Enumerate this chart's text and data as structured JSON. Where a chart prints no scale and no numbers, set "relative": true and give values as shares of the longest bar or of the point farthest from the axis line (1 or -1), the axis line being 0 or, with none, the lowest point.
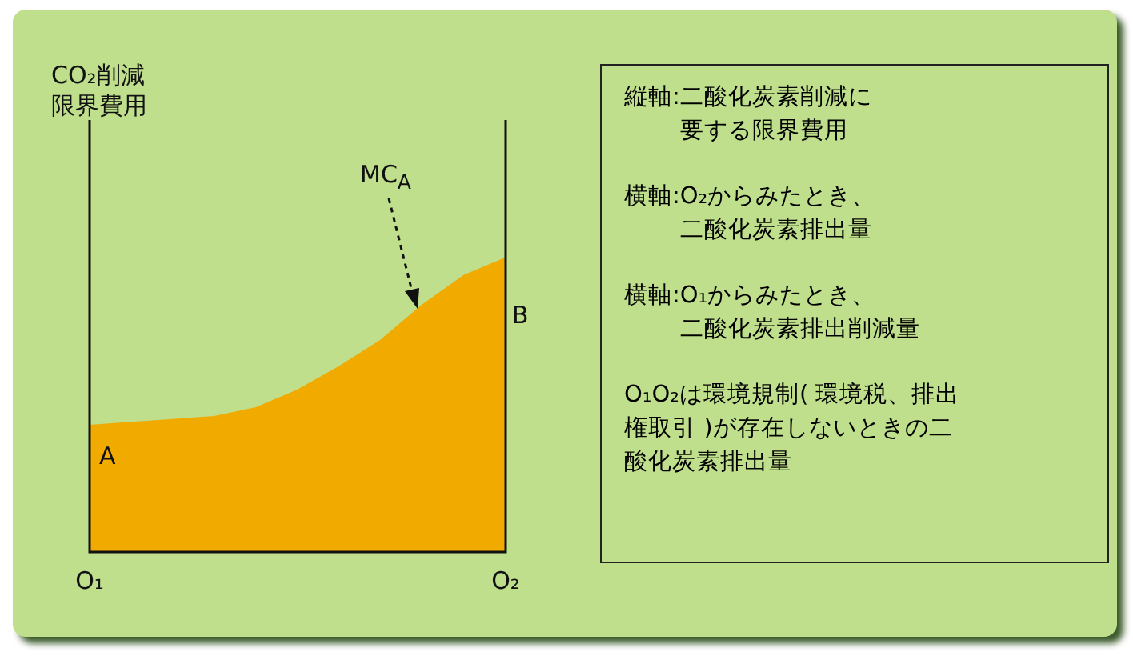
{
  "chart_data": {
    "type": "area",
    "relative": true,
    "categories": [
      "O₁",
      null,
      null,
      null,
      null,
      null,
      null,
      null,
      null,
      null,
      "O₂"
    ],
    "series": [
      {
        "color": "#f0aa00",
        "values": [
          0.43,
          0.44,
          0.45,
          0.46,
          0.49,
          0.55,
          0.63,
          0.72,
          0.84,
          0.94,
          1
        ]
      }
    ],
    "grid": false,
    "legend": false,
    "annotations": [
      "CO₂削減限界費用",
      "MC$_{A}$",
      "A",
      "B",
      "縦軸:二酸化炭素削減に要する限界費用",
      "横軸:O₂からみたとき、二酸化炭素排出量",
      "横軸:O₁からみたとき、二酸化炭素排出削減量",
      "O₁O₂は環境規制( 環境税、排出権取引 )が存在しないときの二酸化炭素排出量"
    ]
  }
}
